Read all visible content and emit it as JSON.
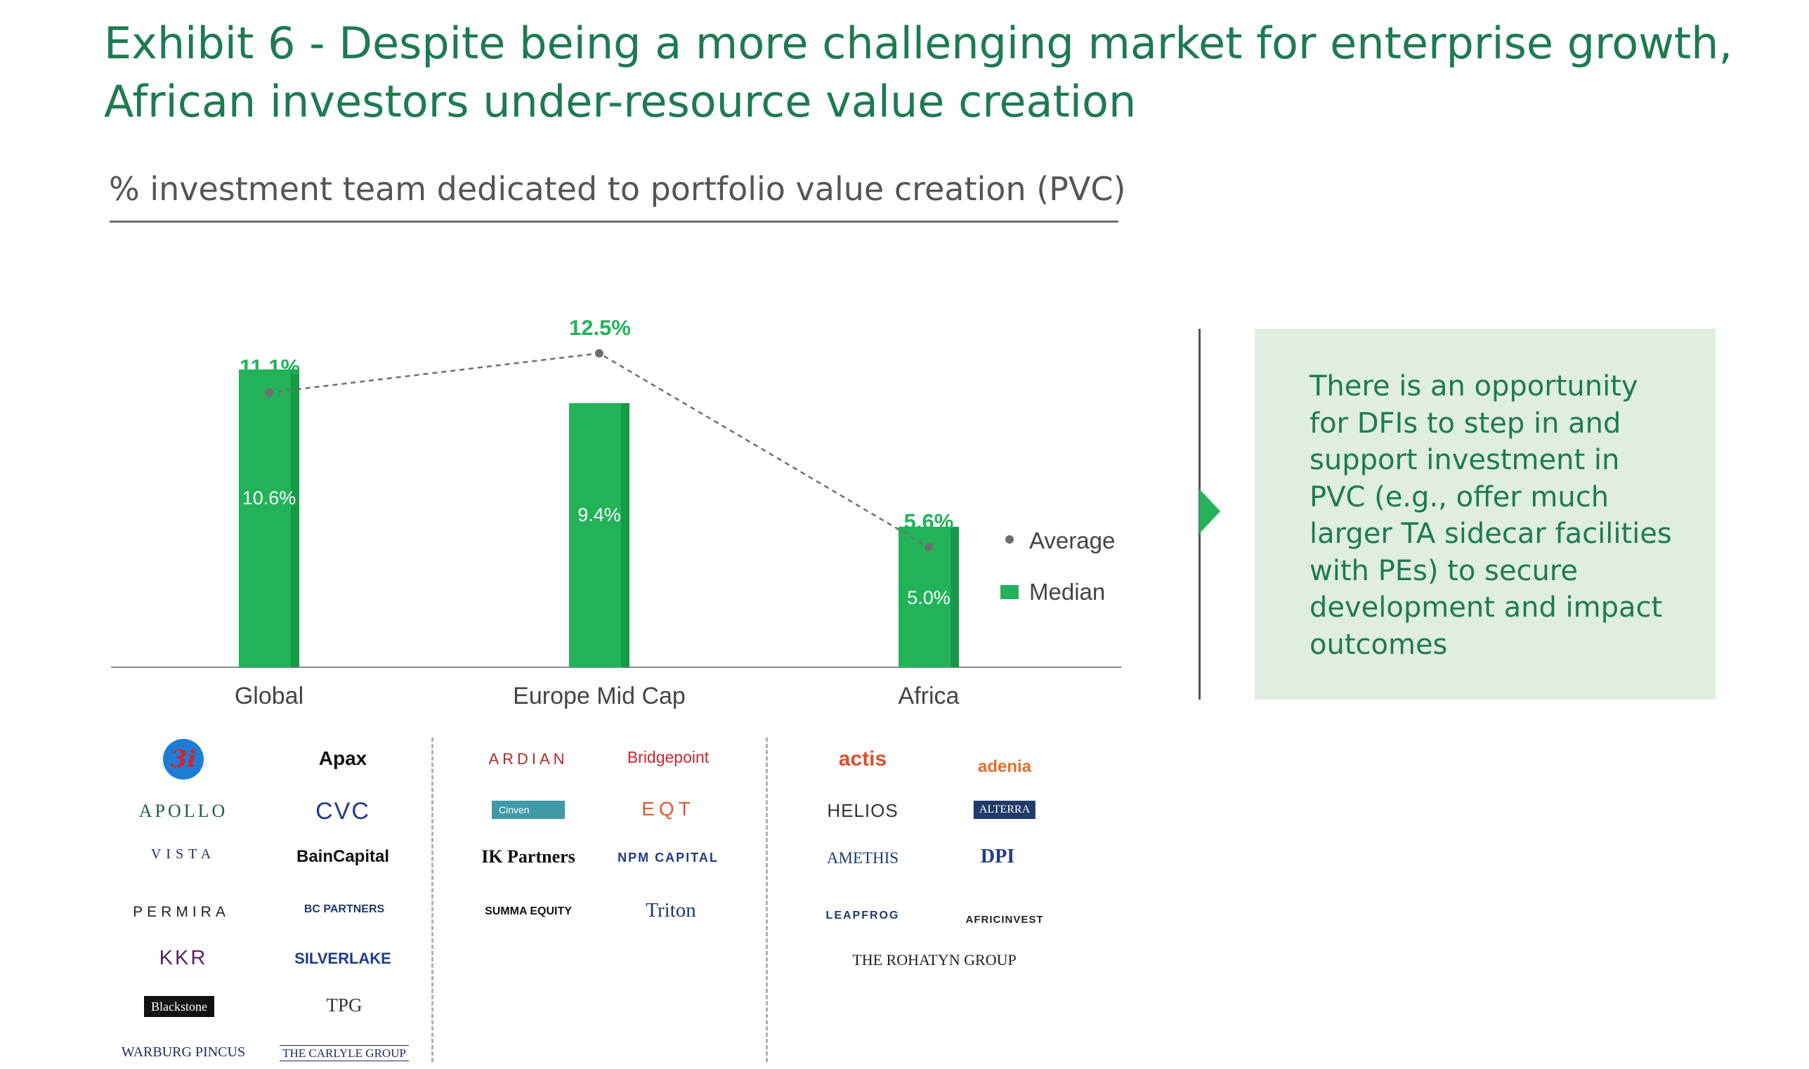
{
  "title": {
    "line1": "Exhibit 6 - Despite being a more challenging market for enterprise growth,",
    "line2": "African investors under-resource value creation"
  },
  "subtitle": "% investment team dedicated to portfolio value creation (PVC)",
  "colors": {
    "title": "#1e7a52",
    "bar": "#22b35a",
    "bar_shade": "#169a48",
    "average": "#6e6e6e",
    "callout_bg": "#dfeee0"
  },
  "chart_data": {
    "type": "bar",
    "title": "% investment team dedicated to portfolio value creation (PVC)",
    "categories": [
      "Global",
      "Europe Mid Cap",
      "Africa"
    ],
    "series": [
      {
        "name": "Median",
        "type": "bar",
        "values": [
          10.6,
          9.4,
          5.0
        ],
        "labels": [
          "10.6%",
          "9.4%",
          "5.0%"
        ]
      },
      {
        "name": "Average",
        "type": "line",
        "style": "dashed-with-dots",
        "values": [
          11.1,
          12.5,
          5.6
        ],
        "labels": [
          "11.1%",
          "12.5%",
          "5.6%"
        ]
      }
    ],
    "ylim": [
      0,
      14
    ],
    "grid": false,
    "legend": {
      "placement": "right",
      "entries": [
        "Average",
        "Median"
      ]
    }
  },
  "callout": {
    "lines": [
      "There is an opportunity",
      "for DFIs to step in and",
      "support investment in",
      "PVC (e.g., offer much",
      "larger TA sidecar facilities",
      "with PEs) to secure",
      "development and impact",
      "outcomes"
    ]
  },
  "logos": {
    "global": [
      "3i",
      "Apax",
      "APOLLO",
      "CVC",
      "VISTA",
      "BainCapital",
      "PERMIRA",
      "BC PARTNERS",
      "KKR",
      "SILVERLAKE",
      "Blackstone",
      "TPG",
      "WARBURG PINCUS",
      "THE CARLYLE GROUP"
    ],
    "europe_mid_cap": [
      "ARDIAN",
      "Bridgepoint",
      "Cinven",
      "EQT",
      "IK Partners",
      "NPM CAPITAL",
      "SUMMA EQUITY",
      "Triton"
    ],
    "africa": [
      "actis",
      "adenia",
      "HELIOS",
      "ALTERRA",
      "AMETHIS",
      "DPI",
      "LEAPFROG",
      "AFRICINVEST",
      "THE ROHATYN GROUP"
    ]
  }
}
